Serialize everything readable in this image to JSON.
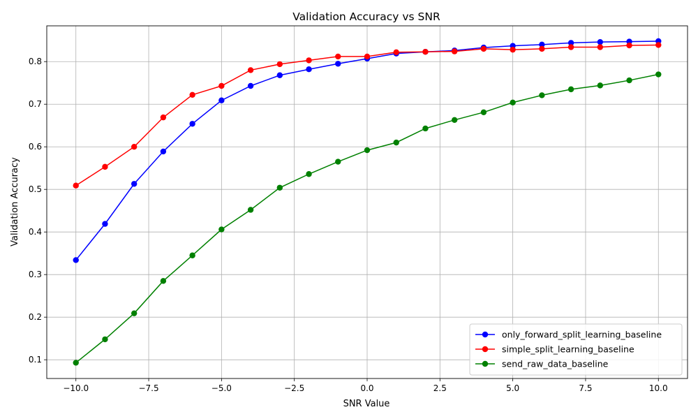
{
  "chart_data": {
    "type": "line",
    "title": "Validation Accuracy vs SNR",
    "xlabel": "SNR Value",
    "ylabel": "Validation Accuracy",
    "xlim": [
      -11,
      11
    ],
    "ylim": [
      0.056,
      0.884
    ],
    "xticks": [
      -10,
      -7.5,
      -5,
      -2.5,
      0,
      2.5,
      5,
      7.5,
      10
    ],
    "xtick_labels": [
      "−10.0",
      "−7.5",
      "−5.0",
      "−2.5",
      "0.0",
      "2.5",
      "5.0",
      "7.5",
      "10.0"
    ],
    "yticks": [
      0.1,
      0.2,
      0.3,
      0.4,
      0.5,
      0.6,
      0.7,
      0.8
    ],
    "ytick_labels": [
      "0.1",
      "0.2",
      "0.3",
      "0.4",
      "0.5",
      "0.6",
      "0.7",
      "0.8"
    ],
    "grid": true,
    "legend_position": "lower-right",
    "x": [
      -10,
      -9,
      -8,
      -7,
      -6,
      -5,
      -4,
      -3,
      -2,
      -1,
      0,
      1,
      2,
      3,
      4,
      5,
      6,
      7,
      8,
      9,
      10
    ],
    "series": [
      {
        "name": "only_forward_split_learning_baseline",
        "color": "#0000ff",
        "marker": "circle",
        "values": [
          0.334,
          0.419,
          0.513,
          0.589,
          0.654,
          0.709,
          0.743,
          0.768,
          0.782,
          0.795,
          0.807,
          0.819,
          0.823,
          0.826,
          0.833,
          0.837,
          0.84,
          0.844,
          0.846,
          0.847,
          0.848
        ]
      },
      {
        "name": "simple_split_learning_baseline",
        "color": "#ff0000",
        "marker": "circle",
        "values": [
          0.509,
          0.553,
          0.6,
          0.669,
          0.722,
          0.743,
          0.78,
          0.794,
          0.803,
          0.812,
          0.812,
          0.822,
          0.823,
          0.824,
          0.83,
          0.828,
          0.83,
          0.834,
          0.834,
          0.838,
          0.839
        ]
      },
      {
        "name": "send_raw_data_baseline",
        "color": "#008000",
        "marker": "circle",
        "values": [
          0.093,
          0.148,
          0.209,
          0.285,
          0.345,
          0.406,
          0.452,
          0.504,
          0.536,
          0.565,
          0.592,
          0.61,
          0.643,
          0.663,
          0.681,
          0.704,
          0.721,
          0.735,
          0.744,
          0.756,
          0.77
        ]
      }
    ]
  }
}
